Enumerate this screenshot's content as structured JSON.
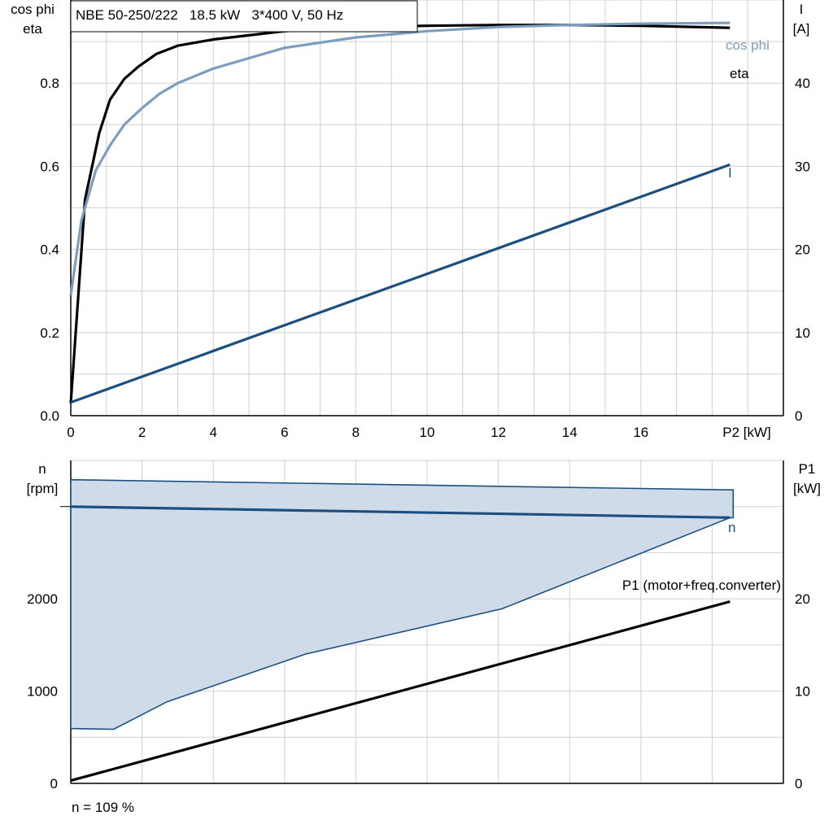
{
  "chart_data": [
    {
      "type": "line",
      "title": "NBE 50-250/222   18.5 kW   3*400 V, 50 Hz",
      "xlabel": "P2 [kW]",
      "ylabel_left": [
        "cos phi",
        "eta"
      ],
      "ylabel_right": [
        "I",
        "[A]"
      ],
      "xlim": [
        0,
        20
      ],
      "ylim_left": [
        0,
        1.0
      ],
      "ylim_right": [
        0,
        50
      ],
      "x_ticks": [
        "0",
        "2",
        "4",
        "6",
        "8",
        "10",
        "12",
        "14",
        "16"
      ],
      "y_left_ticks": [
        "0.0",
        "0.2",
        "0.4",
        "0.6",
        "0.8"
      ],
      "y_right_ticks": [
        "0",
        "10",
        "20",
        "30",
        "40"
      ],
      "grid": true,
      "series": [
        {
          "name": "eta",
          "axis": "left",
          "color": "#000000",
          "x": [
            0,
            0.4,
            0.8,
            1.1,
            1.5,
            1.9,
            2.4,
            3,
            4,
            5,
            6,
            8,
            10,
            12,
            14,
            16,
            18.5
          ],
          "y": [
            0.03,
            0.52,
            0.68,
            0.76,
            0.81,
            0.84,
            0.87,
            0.89,
            0.905,
            0.915,
            0.925,
            0.935,
            0.938,
            0.94,
            0.94,
            0.938,
            0.933
          ]
        },
        {
          "name": "cos phi",
          "axis": "left",
          "color": "#7d9dbf",
          "x": [
            0,
            0.3,
            0.7,
            1.1,
            1.5,
            2,
            2.5,
            3,
            4,
            5,
            6,
            8,
            10,
            12,
            14,
            16,
            18.5
          ],
          "y": [
            0.29,
            0.47,
            0.59,
            0.65,
            0.7,
            0.74,
            0.775,
            0.8,
            0.835,
            0.86,
            0.885,
            0.91,
            0.925,
            0.935,
            0.94,
            0.943,
            0.945
          ]
        },
        {
          "name": "I",
          "axis": "right",
          "color": "#1a4f80",
          "x": [
            0,
            18.5
          ],
          "y": [
            1.6,
            30.2
          ]
        }
      ]
    },
    {
      "type": "area",
      "xlabel": "",
      "ylabel_left": [
        "n",
        "[rpm]"
      ],
      "ylabel_right": [
        "P1",
        "[kW]"
      ],
      "xlim": [
        0,
        20
      ],
      "ylim_left": [
        0,
        3500
      ],
      "ylim_right": [
        0,
        35
      ],
      "y_left_ticks": [
        "0",
        "1000",
        "2000"
      ],
      "y_right_ticks": [
        "0",
        "10",
        "20"
      ],
      "grid": true,
      "operating_area": {
        "upper_x": [
          0,
          18.5
        ],
        "upper_y": [
          3291,
          3181
        ],
        "lower_x": [
          0,
          1.2,
          2.7,
          6.6,
          12.1,
          18.5
        ],
        "lower_y": [
          594,
          586,
          884,
          1403,
          1892,
          2879
        ]
      },
      "series": [
        {
          "name": "n",
          "axis": "left",
          "color": "#1a4f80",
          "x": [
            0,
            18.5
          ],
          "y": [
            2999,
            2880
          ]
        },
        {
          "name": "P1 (motor+freq.converter)",
          "axis": "right",
          "color": "#000000",
          "x": [
            0,
            18.5
          ],
          "y": [
            0.3,
            19.7
          ]
        }
      ],
      "annotation": "n = 109 %"
    }
  ]
}
